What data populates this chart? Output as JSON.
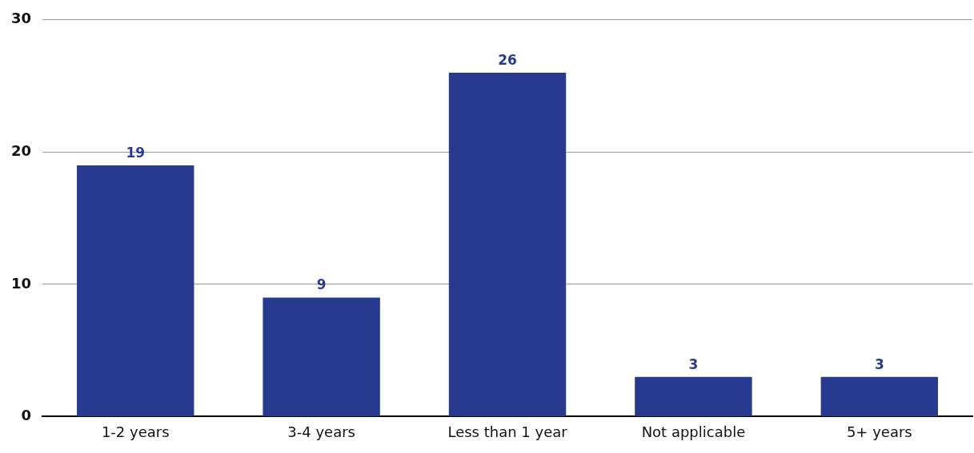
{
  "chart_data": {
    "type": "bar",
    "categories": [
      "1-2 years",
      "3-4 years",
      "Less than 1 year",
      "Not applicable",
      "5+ years"
    ],
    "values": [
      19,
      9,
      26,
      3,
      3
    ],
    "color": "#283a8f",
    "ylim": [
      0,
      30
    ],
    "yticks": [
      0,
      10,
      20,
      30
    ],
    "grid": "y",
    "data_labels": true
  }
}
